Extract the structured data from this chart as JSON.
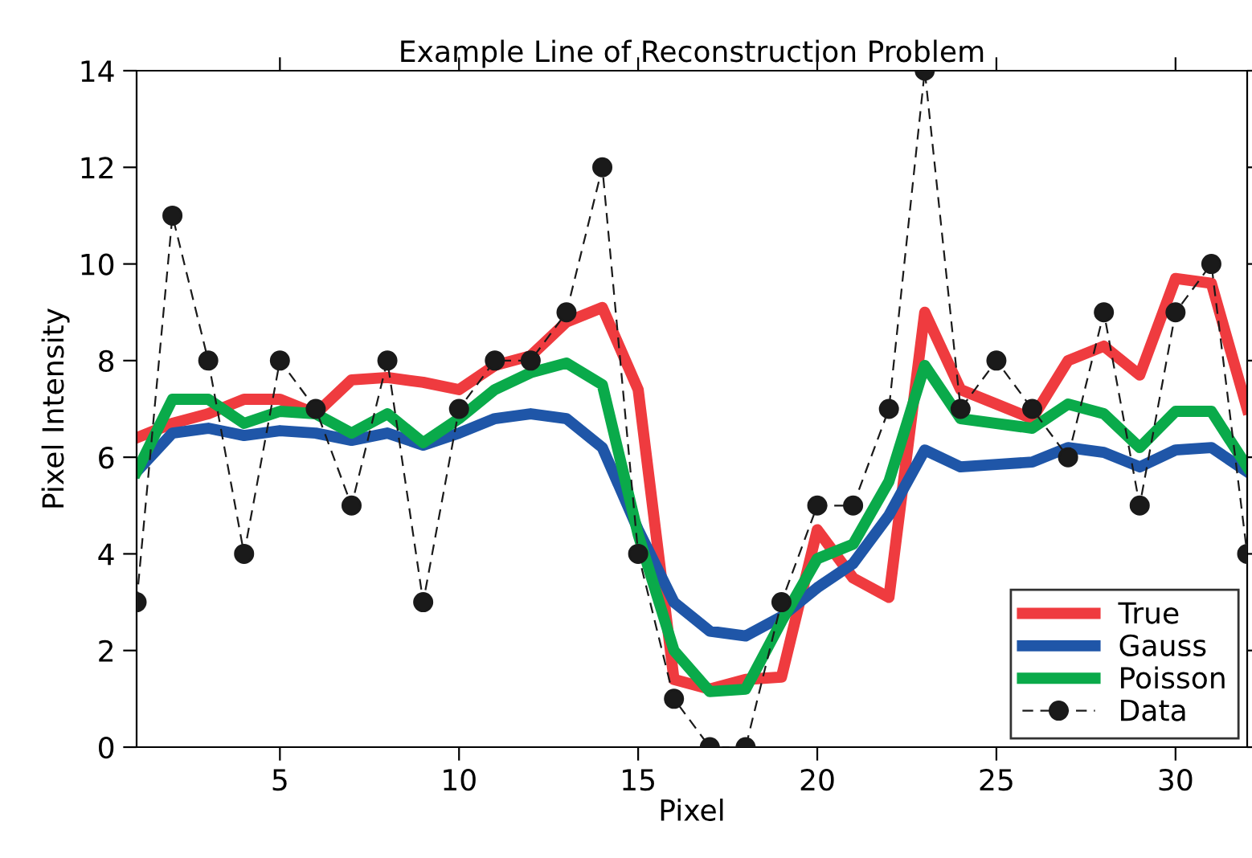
{
  "chart_data": {
    "type": "line",
    "title": "Example Line of Reconstruction Problem",
    "xlabel": "Pixel",
    "ylabel": "Pixel Intensity",
    "x": [
      1,
      2,
      3,
      4,
      5,
      6,
      7,
      8,
      9,
      10,
      11,
      12,
      13,
      14,
      15,
      16,
      17,
      18,
      19,
      20,
      21,
      22,
      23,
      24,
      25,
      26,
      27,
      28,
      29,
      30,
      31,
      32
    ],
    "series": [
      {
        "name": "True",
        "color": "#ef3b3f",
        "line_style": "solid",
        "marker": "none",
        "values": [
          6.4,
          6.7,
          6.9,
          7.2,
          7.2,
          6.9,
          7.6,
          7.65,
          7.55,
          7.4,
          7.9,
          8.1,
          8.8,
          9.1,
          7.4,
          1.4,
          1.2,
          1.4,
          1.45,
          4.5,
          3.5,
          3.1,
          9.0,
          7.4,
          7.1,
          6.8,
          8.0,
          8.3,
          7.7,
          9.7,
          9.6,
          7.0
        ]
      },
      {
        "name": "Gauss",
        "color": "#1f56a8",
        "line_style": "solid",
        "marker": "none",
        "values": [
          5.7,
          6.5,
          6.6,
          6.45,
          6.55,
          6.5,
          6.35,
          6.5,
          6.25,
          6.5,
          6.8,
          6.9,
          6.8,
          6.2,
          4.5,
          3.0,
          2.4,
          2.3,
          2.7,
          3.3,
          3.8,
          4.8,
          6.15,
          5.8,
          5.85,
          5.9,
          6.2,
          6.1,
          5.8,
          6.15,
          6.2,
          5.7
        ]
      },
      {
        "name": "Poisson",
        "color": "#0aaa4a",
        "line_style": "solid",
        "marker": "none",
        "values": [
          5.7,
          7.2,
          7.2,
          6.7,
          6.95,
          6.9,
          6.5,
          6.9,
          6.3,
          6.8,
          7.4,
          7.75,
          7.95,
          7.5,
          4.4,
          2.0,
          1.15,
          1.2,
          2.6,
          3.9,
          4.2,
          5.5,
          7.9,
          6.8,
          6.7,
          6.6,
          7.1,
          6.9,
          6.2,
          6.95,
          6.95,
          5.8
        ]
      },
      {
        "name": "Data",
        "color": "#1a1a1a",
        "line_style": "dashed",
        "marker": "circle",
        "values": [
          3,
          11,
          8,
          4,
          8,
          7,
          5,
          8,
          3,
          7,
          8,
          8,
          9,
          12,
          4,
          1,
          0,
          0,
          3,
          5,
          5,
          7,
          14,
          7,
          8,
          7,
          6,
          9,
          5,
          9,
          10,
          4
        ]
      }
    ],
    "xlim": [
      1,
      32
    ],
    "ylim": [
      0,
      14
    ],
    "xticks": [
      5,
      10,
      15,
      20,
      25,
      30
    ],
    "yticks": [
      0,
      2,
      4,
      6,
      8,
      10,
      12,
      14
    ],
    "grid": false,
    "legend": "bottom right"
  }
}
